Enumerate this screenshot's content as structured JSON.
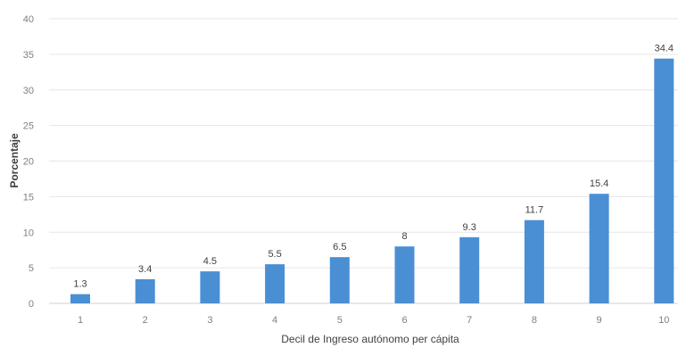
{
  "chart_data": {
    "type": "bar",
    "categories": [
      "1",
      "2",
      "3",
      "4",
      "5",
      "6",
      "7",
      "8",
      "9",
      "10"
    ],
    "values": [
      1.3,
      3.4,
      4.5,
      5.5,
      6.5,
      8,
      9.3,
      11.7,
      15.4,
      34.4
    ],
    "data_labels": [
      "1.3",
      "3.4",
      "4.5",
      "5.5",
      "6.5",
      "8",
      "9.3",
      "11.7",
      "15.4",
      "34.4"
    ],
    "xlabel": "Decil de Ingreso autónomo per cápita",
    "ylabel": "Porcentaje",
    "ylim": [
      0,
      40
    ],
    "yticks": [
      0,
      5,
      10,
      15,
      20,
      25,
      30,
      35,
      40
    ],
    "grid": true,
    "bar_color": "#4a8fd4"
  }
}
